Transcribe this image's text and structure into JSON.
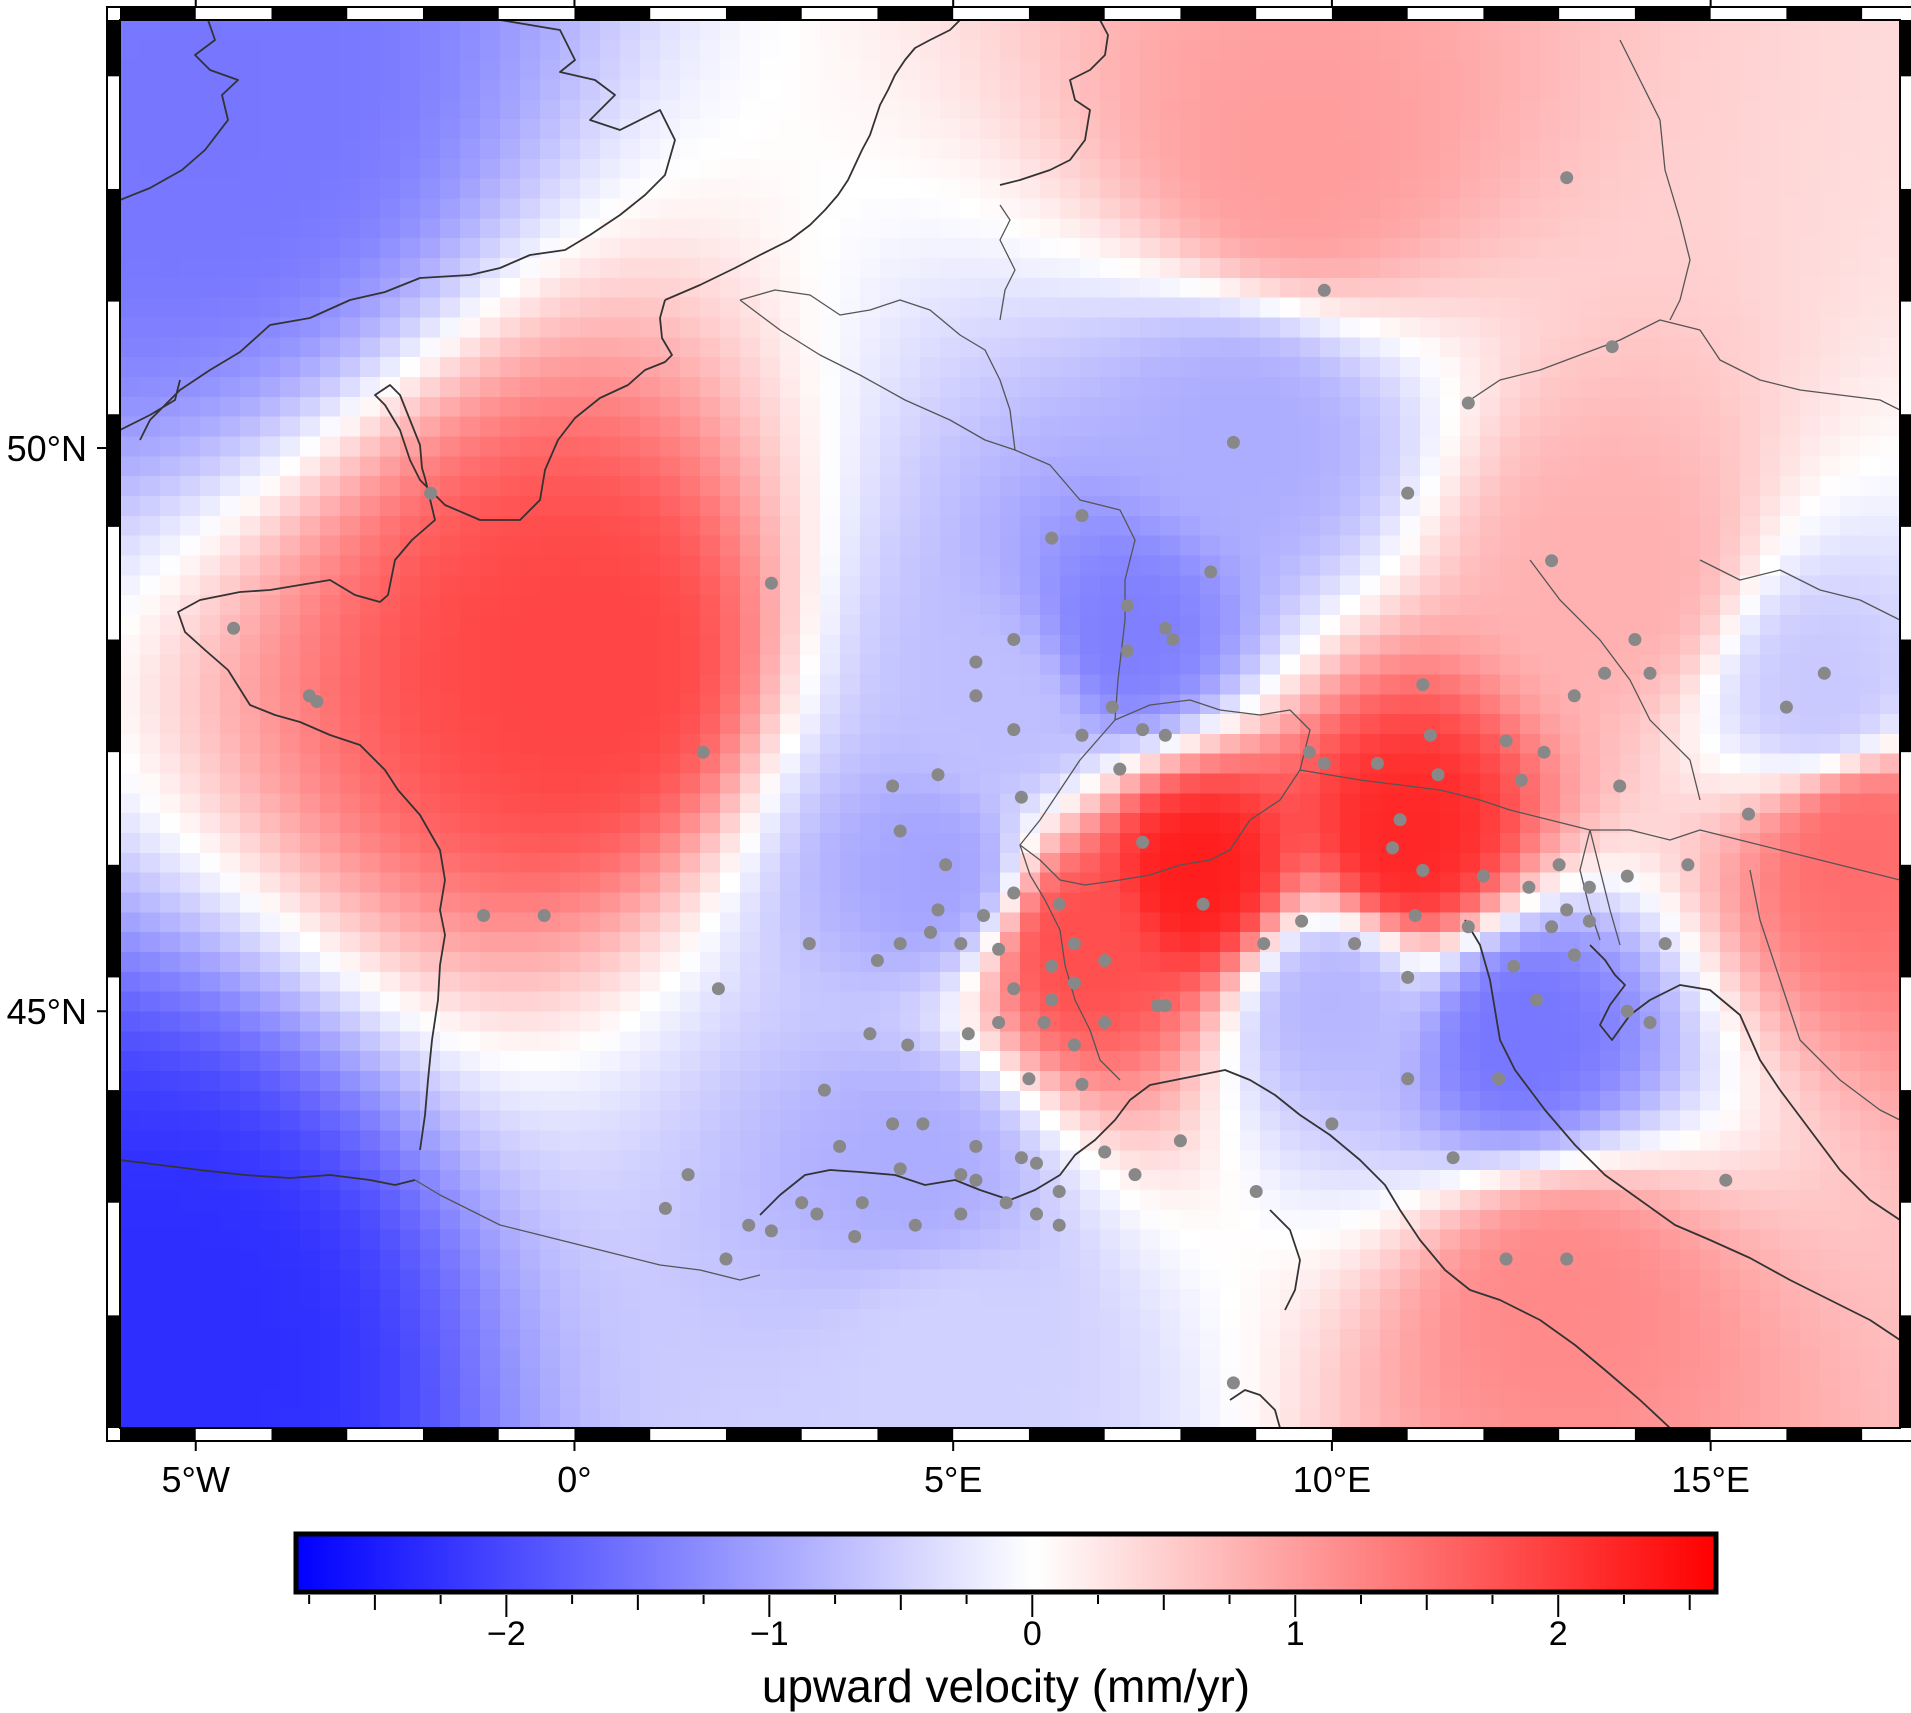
{
  "map": {
    "lon_range": [
      -6,
      17.5
    ],
    "lat_range": [
      41.3,
      53.8
    ],
    "longitude_ticks": [
      {
        "value": -5,
        "label": "5°W"
      },
      {
        "value": 0,
        "label": "0°"
      },
      {
        "value": 5,
        "label": "5°E"
      },
      {
        "value": 10,
        "label": "10°E"
      },
      {
        "value": 15,
        "label": "15°E"
      }
    ],
    "latitude_ticks": [
      {
        "value": 50,
        "label": "50°N"
      },
      {
        "value": 45,
        "label": "45°N"
      }
    ],
    "frame_style": "checkered-black-white",
    "coastline_color": "#333333",
    "station_color": "#888888"
  },
  "colorbar": {
    "title": "upward velocity (mm/yr)",
    "range": [
      -2.8,
      2.6
    ],
    "ticks": [
      {
        "value": -2,
        "label": "−2"
      },
      {
        "value": -1,
        "label": "−1"
      },
      {
        "value": 0,
        "label": "0"
      },
      {
        "value": 1,
        "label": "1"
      },
      {
        "value": 2,
        "label": "2"
      }
    ],
    "low_color": "#0000ff",
    "mid_color": "#ffffff",
    "high_color": "#ff0000"
  },
  "chart_data": {
    "type": "heatmap",
    "description_field": "upward velocity (mm/yr)",
    "regional_values": [
      {
        "lon": -5.5,
        "lat": 42.0,
        "value": -2.3
      },
      {
        "lon": -5.0,
        "lat": 53.0,
        "value": -1.5
      },
      {
        "lon": 0.2,
        "lat": 48.0,
        "value": 1.9
      },
      {
        "lon": 9.5,
        "lat": 52.5,
        "value": 1.0
      },
      {
        "lon": 8.8,
        "lat": 50.1,
        "value": -0.9
      },
      {
        "lon": 7.3,
        "lat": 48.3,
        "value": -1.4
      },
      {
        "lon": 5.7,
        "lat": 47.7,
        "value": -0.7
      },
      {
        "lon": 4.8,
        "lat": 46.2,
        "value": -1.0
      },
      {
        "lon": 8.2,
        "lat": 46.2,
        "value": 2.3
      },
      {
        "lon": 11.0,
        "lat": 46.5,
        "value": 2.2
      },
      {
        "lon": 6.7,
        "lat": 45.6,
        "value": 1.8
      },
      {
        "lon": 12.5,
        "lat": 44.8,
        "value": -1.5
      },
      {
        "lon": 10.0,
        "lat": 45.1,
        "value": -0.8
      },
      {
        "lon": 4.5,
        "lat": 43.6,
        "value": -0.9
      },
      {
        "lon": 16.5,
        "lat": 47.8,
        "value": -0.6
      },
      {
        "lon": 17.0,
        "lat": 46.5,
        "value": 1.5
      },
      {
        "lon": 13.0,
        "lat": 42.5,
        "value": 1.2
      },
      {
        "lon": 5.0,
        "lat": 42.0,
        "value": -0.5
      },
      {
        "lon": 13.8,
        "lat": 48.8,
        "value": 0.8
      }
    ],
    "stations": [
      [
        13.1,
        52.4
      ],
      [
        9.9,
        51.4
      ],
      [
        13.7,
        50.9
      ],
      [
        11.8,
        50.4
      ],
      [
        8.7,
        50.05
      ],
      [
        11.0,
        49.6
      ],
      [
        12.9,
        49.0
      ],
      [
        6.7,
        49.4
      ],
      [
        6.3,
        49.2
      ],
      [
        8.4,
        48.9
      ],
      [
        7.3,
        48.6
      ],
      [
        7.8,
        48.4
      ],
      [
        7.9,
        48.3
      ],
      [
        5.8,
        48.3
      ],
      [
        5.3,
        48.1
      ],
      [
        7.3,
        48.2
      ],
      [
        11.2,
        47.9
      ],
      [
        14.0,
        48.3
      ],
      [
        14.2,
        48.0
      ],
      [
        13.6,
        48.0
      ],
      [
        13.2,
        47.8
      ],
      [
        16.0,
        47.7
      ],
      [
        16.5,
        48.0
      ],
      [
        5.3,
        47.8
      ],
      [
        7.1,
        47.7
      ],
      [
        5.8,
        47.5
      ],
      [
        6.7,
        47.45
      ],
      [
        7.5,
        47.5
      ],
      [
        7.8,
        47.45
      ],
      [
        11.3,
        47.45
      ],
      [
        12.3,
        47.4
      ],
      [
        12.8,
        47.3
      ],
      [
        9.7,
        47.3
      ],
      [
        9.9,
        47.2
      ],
      [
        10.6,
        47.2
      ],
      [
        11.4,
        47.1
      ],
      [
        12.5,
        47.05
      ],
      [
        13.8,
        47.0
      ],
      [
        7.2,
        47.15
      ],
      [
        5.9,
        46.9
      ],
      [
        10.9,
        46.7
      ],
      [
        15.5,
        46.75
      ],
      [
        4.3,
        46.6
      ],
      [
        7.5,
        46.5
      ],
      [
        10.8,
        46.45
      ],
      [
        4.9,
        46.3
      ],
      [
        11.2,
        46.25
      ],
      [
        12.0,
        46.2
      ],
      [
        12.6,
        46.1
      ],
      [
        13.0,
        46.3
      ],
      [
        13.4,
        46.1
      ],
      [
        13.9,
        46.2
      ],
      [
        14.7,
        46.3
      ],
      [
        5.8,
        46.05
      ],
      [
        6.4,
        45.95
      ],
      [
        8.3,
        45.95
      ],
      [
        9.6,
        45.8
      ],
      [
        11.1,
        45.85
      ],
      [
        11.8,
        45.75
      ],
      [
        12.9,
        45.75
      ],
      [
        13.1,
        45.9
      ],
      [
        13.4,
        45.8
      ],
      [
        14.4,
        45.6
      ],
      [
        -1.2,
        45.85
      ],
      [
        -0.4,
        45.85
      ],
      [
        4.8,
        45.9
      ],
      [
        5.4,
        45.85
      ],
      [
        4.7,
        45.7
      ],
      [
        5.1,
        45.6
      ],
      [
        5.6,
        45.55
      ],
      [
        6.6,
        45.6
      ],
      [
        6.3,
        45.4
      ],
      [
        7.0,
        45.45
      ],
      [
        9.1,
        45.6
      ],
      [
        10.3,
        45.6
      ],
      [
        11.0,
        45.3
      ],
      [
        12.4,
        45.4
      ],
      [
        13.2,
        45.5
      ],
      [
        12.7,
        45.1
      ],
      [
        3.1,
        45.6
      ],
      [
        4.3,
        45.6
      ],
      [
        4.0,
        45.45
      ],
      [
        5.8,
        45.2
      ],
      [
        6.3,
        45.1
      ],
      [
        6.6,
        45.25
      ],
      [
        7.7,
        45.05
      ],
      [
        7.8,
        45.05
      ],
      [
        1.9,
        45.2
      ],
      [
        3.9,
        44.8
      ],
      [
        4.4,
        44.7
      ],
      [
        5.2,
        44.8
      ],
      [
        5.6,
        44.9
      ],
      [
        6.2,
        44.9
      ],
      [
        6.6,
        44.7
      ],
      [
        7.0,
        44.9
      ],
      [
        3.3,
        44.3
      ],
      [
        6.0,
        44.4
      ],
      [
        6.7,
        44.35
      ],
      [
        12.2,
        44.4
      ],
      [
        11.0,
        44.4
      ],
      [
        4.2,
        44.0
      ],
      [
        4.6,
        44.0
      ],
      [
        5.3,
        43.8
      ],
      [
        5.9,
        43.7
      ],
      [
        7.0,
        43.75
      ],
      [
        8.0,
        43.85
      ],
      [
        9.0,
        43.4
      ],
      [
        11.6,
        43.7
      ],
      [
        10.0,
        44.0
      ],
      [
        7.4,
        43.55
      ],
      [
        6.4,
        43.4
      ],
      [
        5.7,
        43.3
      ],
      [
        4.3,
        43.6
      ],
      [
        3.2,
        43.2
      ],
      [
        2.3,
        43.1
      ],
      [
        3.0,
        43.3
      ],
      [
        3.5,
        43.8
      ],
      [
        4.5,
        43.1
      ],
      [
        1.5,
        43.55
      ],
      [
        1.2,
        43.25
      ],
      [
        2.6,
        43.05
      ],
      [
        5.1,
        43.2
      ],
      [
        6.1,
        43.2
      ],
      [
        6.4,
        43.1
      ],
      [
        3.8,
        43.3
      ],
      [
        5.3,
        43.5
      ],
      [
        6.1,
        43.65
      ],
      [
        5.1,
        43.55
      ],
      [
        2.0,
        42.8
      ],
      [
        3.7,
        43.0
      ],
      [
        12.3,
        42.8
      ],
      [
        13.1,
        42.8
      ],
      [
        8.7,
        41.7
      ],
      [
        15.2,
        43.5
      ],
      [
        13.9,
        45.0
      ],
      [
        14.2,
        44.9
      ],
      [
        -1.9,
        49.6
      ],
      [
        -4.5,
        48.4
      ],
      [
        -3.5,
        47.8
      ],
      [
        -3.4,
        47.75
      ],
      [
        1.7,
        47.3
      ],
      [
        2.6,
        48.8
      ],
      [
        4.2,
        47.0
      ],
      [
        4.8,
        47.1
      ]
    ]
  }
}
